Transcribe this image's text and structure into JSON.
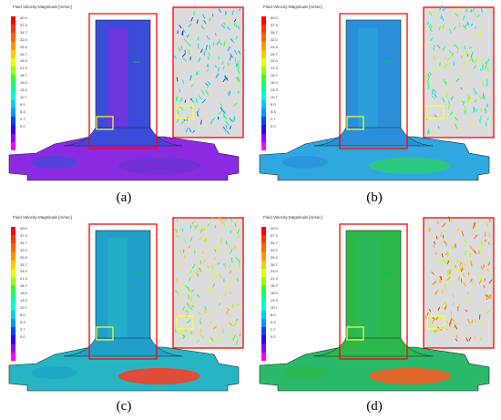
{
  "legend_title": "Fluid Velocity-Magnitude [m/sec]",
  "legend_ticks": [
    "40.0",
    "37.3",
    "34.7",
    "32.0",
    "29.3",
    "26.7",
    "24.0",
    "21.3",
    "18.7",
    "16.0",
    "13.3",
    "10.7",
    "8.0",
    "5.3",
    "2.7",
    "0.0"
  ],
  "legend_colors": [
    "#ff0000",
    "#ff3300",
    "#ff6600",
    "#ff9900",
    "#ffcc00",
    "#e6ff00",
    "#99ff00",
    "#33ff33",
    "#00ff99",
    "#00ffcc",
    "#00ccff",
    "#0099ff",
    "#0044ff",
    "#3300ff",
    "#9900ff",
    "#ff00ff"
  ],
  "panels": [
    {
      "caption": "(a)",
      "bg": "#8a2be2",
      "stem": "#3a4cd8",
      "base_hot": "#6a33d0"
    },
    {
      "caption": "(b)",
      "bg": "#2fa8e0",
      "stem": "#2a8fd8",
      "base_hot": "#2ecc71"
    },
    {
      "caption": "(c)",
      "bg": "#27b5c4",
      "stem": "#1fa0c8",
      "base_hot": "#ff3b1f"
    },
    {
      "caption": "(d)",
      "bg": "#2ab86a",
      "stem": "#2db84a",
      "base_hot": "#ff5a1f"
    }
  ],
  "highlight_color": "#ff0000",
  "marker_color": "#ffff33"
}
